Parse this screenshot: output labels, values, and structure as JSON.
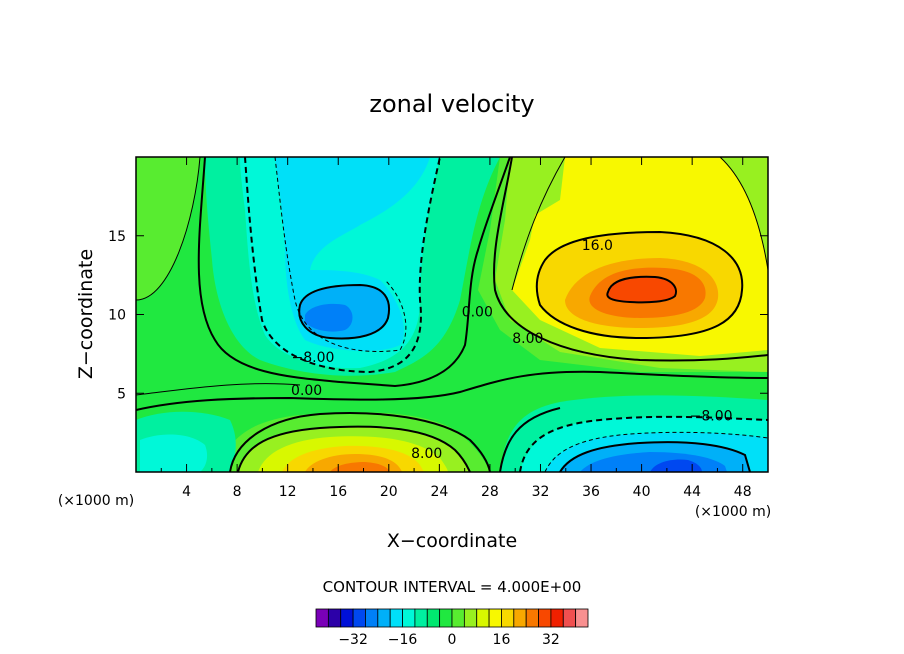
{
  "chart_data": {
    "type": "contour",
    "title": "zonal velocity",
    "xlabel": "X−coordinate",
    "ylabel": "Z−coordinate",
    "x_unit_left": "(×1000 m)",
    "x_unit_right": "(×1000 m)",
    "xlim": [
      0,
      50
    ],
    "ylim": [
      0,
      20
    ],
    "x_ticks": [
      4,
      8,
      12,
      16,
      20,
      24,
      28,
      32,
      36,
      40,
      44,
      48
    ],
    "y_ticks": [
      5,
      10,
      15
    ],
    "contour_interval_text": "CONTOUR INTERVAL = 4.000E+00",
    "contour_labels": [
      {
        "text": "16.0",
        "x": 36.5,
        "z": 14.4
      },
      {
        "text": "8.00",
        "x": 31.0,
        "z": 8.5
      },
      {
        "text": "0.00",
        "x": 27.0,
        "z": 10.2
      },
      {
        "text": "−8.00",
        "x": 14.0,
        "z": 7.3
      },
      {
        "text": "0.00",
        "x": 13.5,
        "z": 5.2
      },
      {
        "text": "8.00",
        "x": 23.0,
        "z": 1.2
      },
      {
        "text": "−8.00",
        "x": 45.5,
        "z": 3.6
      }
    ],
    "colorbar": {
      "levels": [
        -36,
        -32,
        -28,
        -24,
        -20,
        -16,
        -12,
        -8,
        -4,
        0,
        4,
        8,
        12,
        16,
        20,
        24,
        28,
        32,
        36
      ],
      "tick_labels": [
        "−32",
        "−16",
        "0",
        "16",
        "32"
      ],
      "colors": [
        "#7a00b8",
        "#2c00a8",
        "#0010d8",
        "#0048f0",
        "#0080f8",
        "#00b0f8",
        "#00e0f8",
        "#00f8d8",
        "#00f0a0",
        "#00e870",
        "#20e840",
        "#58ec30",
        "#98f020",
        "#d8f800",
        "#f8f800",
        "#f8d800",
        "#f8a800",
        "#f87800",
        "#f84800",
        "#f02000",
        "#f05050",
        "#f89090"
      ]
    },
    "features": [
      {
        "name": "positive max",
        "x": 40,
        "z": 11.5,
        "value": 28
      },
      {
        "name": "positive max",
        "x": 17.5,
        "z": 0.5,
        "value": 22
      },
      {
        "name": "negative min",
        "x": 15,
        "z": 9.7,
        "value": -20
      },
      {
        "name": "negative min",
        "x": 42,
        "z": 0.3,
        "value": -22
      }
    ]
  }
}
